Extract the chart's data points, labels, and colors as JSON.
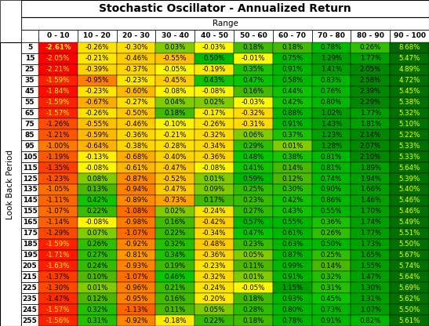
{
  "title": "Stochastic Oscillator - Annualized Return",
  "col_header": "Range",
  "row_header": "Look Back Period",
  "columns": [
    "0 - 10",
    "10 - 20",
    "20 - 30",
    "30 - 40",
    "40 - 50",
    "50 - 60",
    "60 - 70",
    "70 - 80",
    "80 - 90",
    "90 - 100"
  ],
  "rows": [
    5,
    15,
    25,
    35,
    45,
    55,
    65,
    75,
    85,
    95,
    105,
    115,
    125,
    135,
    145,
    155,
    165,
    175,
    185,
    195,
    205,
    215,
    225,
    235,
    245,
    255
  ],
  "values": [
    [
      -2.61,
      -0.26,
      -0.3,
      0.03,
      -0.03,
      0.18,
      0.18,
      0.78,
      0.26,
      8.68
    ],
    [
      -2.05,
      -0.21,
      -0.46,
      -0.55,
      0.5,
      -0.01,
      0.75,
      1.29,
      1.77,
      5.47
    ],
    [
      -2.21,
      -0.39,
      -0.37,
      -0.05,
      -0.19,
      0.35,
      0.91,
      1.41,
      2.05,
      4.89
    ],
    [
      -1.59,
      -0.95,
      -0.23,
      -0.45,
      0.43,
      0.47,
      0.58,
      0.83,
      2.58,
      4.72
    ],
    [
      -1.84,
      -0.23,
      -0.6,
      -0.08,
      -0.08,
      0.16,
      0.44,
      0.76,
      2.39,
      5.45
    ],
    [
      -1.59,
      -0.67,
      -0.27,
      0.04,
      0.02,
      -0.03,
      0.42,
      0.8,
      2.29,
      5.38
    ],
    [
      -1.57,
      -0.26,
      -0.5,
      0.18,
      -0.17,
      -0.32,
      0.88,
      1.02,
      1.77,
      5.32
    ],
    [
      -1.26,
      -0.55,
      -0.46,
      -0.1,
      -0.26,
      -0.31,
      0.91,
      1.43,
      1.81,
      5.1
    ],
    [
      -1.21,
      -0.59,
      -0.36,
      -0.21,
      -0.32,
      0.06,
      0.37,
      1.23,
      2.14,
      5.22
    ],
    [
      -1.0,
      -0.64,
      -0.38,
      -0.28,
      -0.34,
      0.29,
      0.01,
      1.28,
      2.07,
      5.33
    ],
    [
      -1.19,
      -0.13,
      -0.68,
      -0.4,
      -0.36,
      0.48,
      0.38,
      0.81,
      2.1,
      5.33
    ],
    [
      -1.35,
      -0.08,
      -0.61,
      -0.47,
      -0.08,
      0.41,
      0.14,
      0.81,
      1.89,
      5.64
    ],
    [
      -1.23,
      0.08,
      -0.87,
      -0.52,
      0.01,
      0.59,
      0.12,
      0.74,
      1.94,
      5.39
    ],
    [
      -1.05,
      0.13,
      -0.94,
      -0.47,
      0.09,
      0.25,
      0.3,
      0.9,
      1.66,
      5.4
    ],
    [
      -1.11,
      0.42,
      -0.89,
      -0.73,
      0.17,
      0.23,
      0.42,
      0.86,
      1.46,
      5.46
    ],
    [
      -1.07,
      0.22,
      -1.08,
      0.02,
      -0.24,
      0.27,
      0.43,
      0.55,
      1.7,
      5.46
    ],
    [
      -1.14,
      -0.08,
      -0.98,
      0.16,
      -0.42,
      0.57,
      0.55,
      0.36,
      1.74,
      5.49
    ],
    [
      -1.29,
      0.07,
      -1.07,
      0.22,
      -0.34,
      0.47,
      0.61,
      0.26,
      1.77,
      5.51
    ],
    [
      -1.59,
      0.26,
      -0.92,
      0.32,
      -0.48,
      0.23,
      0.63,
      0.5,
      1.73,
      5.5
    ],
    [
      -1.71,
      0.27,
      -0.81,
      0.34,
      -0.36,
      0.05,
      0.87,
      0.25,
      1.65,
      5.67
    ],
    [
      -1.63,
      0.24,
      -0.93,
      0.19,
      -0.23,
      0.11,
      0.99,
      0.14,
      1.55,
      5.74
    ],
    [
      -1.37,
      0.1,
      -1.07,
      0.46,
      -0.32,
      0.01,
      0.91,
      0.32,
      1.47,
      5.64
    ],
    [
      -1.3,
      0.01,
      -0.96,
      0.21,
      -0.24,
      -0.05,
      1.15,
      0.31,
      1.3,
      5.69
    ],
    [
      -1.47,
      0.12,
      -0.95,
      0.16,
      -0.2,
      0.18,
      0.93,
      0.45,
      1.31,
      5.62
    ],
    [
      -1.57,
      0.32,
      -1.13,
      0.11,
      0.05,
      0.28,
      0.8,
      0.73,
      1.07,
      5.5
    ],
    [
      -1.56,
      0.31,
      -0.92,
      -0.18,
      0.22,
      0.18,
      0.78,
      0.91,
      0.82,
      5.61
    ]
  ],
  "title_fontsize": 10,
  "header_fontsize": 7.5,
  "cell_fontsize": 6.2,
  "row_num_fontsize": 6.5
}
